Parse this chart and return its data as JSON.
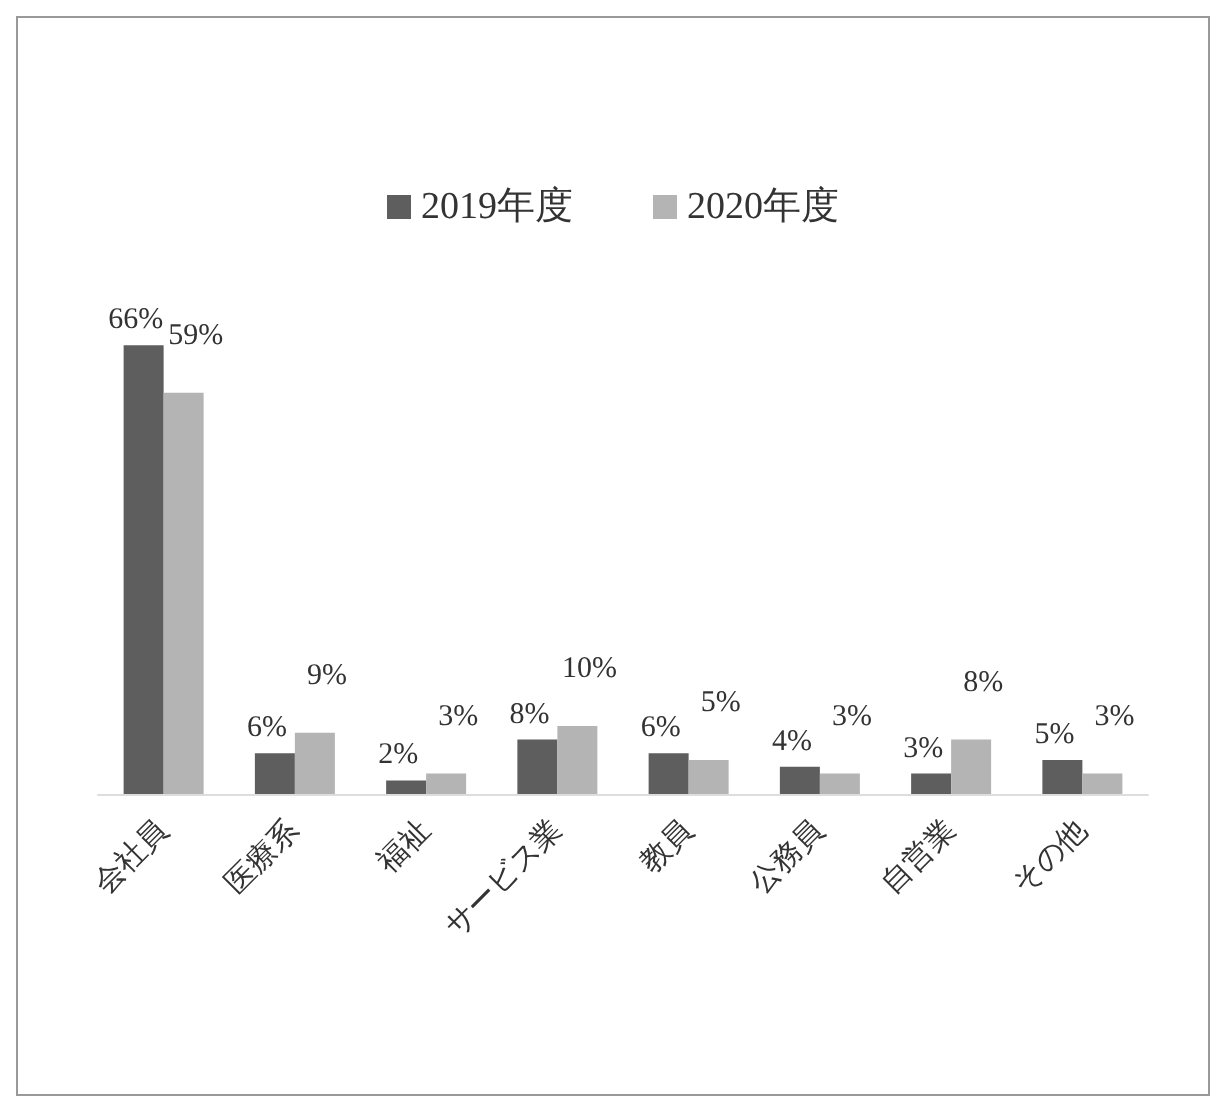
{
  "chart_data": {
    "type": "bar",
    "categories": [
      "会社員",
      "医療系",
      "福祉",
      "サービス業",
      "教員",
      "公務員",
      "自営業",
      "その他"
    ],
    "series": [
      {
        "name": "2019年度",
        "color": "#5e5e5e",
        "values": [
          66,
          6,
          2,
          8,
          6,
          4,
          3,
          5
        ],
        "value_labels": [
          "66%",
          "6%",
          "2%",
          "8%",
          "6%",
          "4%",
          "3%",
          "5%"
        ]
      },
      {
        "name": "2020年度",
        "color": "#b4b4b4",
        "values": [
          59,
          9,
          3,
          10,
          5,
          3,
          8,
          3
        ],
        "value_labels": [
          "59%",
          "9%",
          "3%",
          "10%",
          "5%",
          "3%",
          "8%",
          "3%"
        ]
      }
    ],
    "legend": "top",
    "grid": false
  }
}
